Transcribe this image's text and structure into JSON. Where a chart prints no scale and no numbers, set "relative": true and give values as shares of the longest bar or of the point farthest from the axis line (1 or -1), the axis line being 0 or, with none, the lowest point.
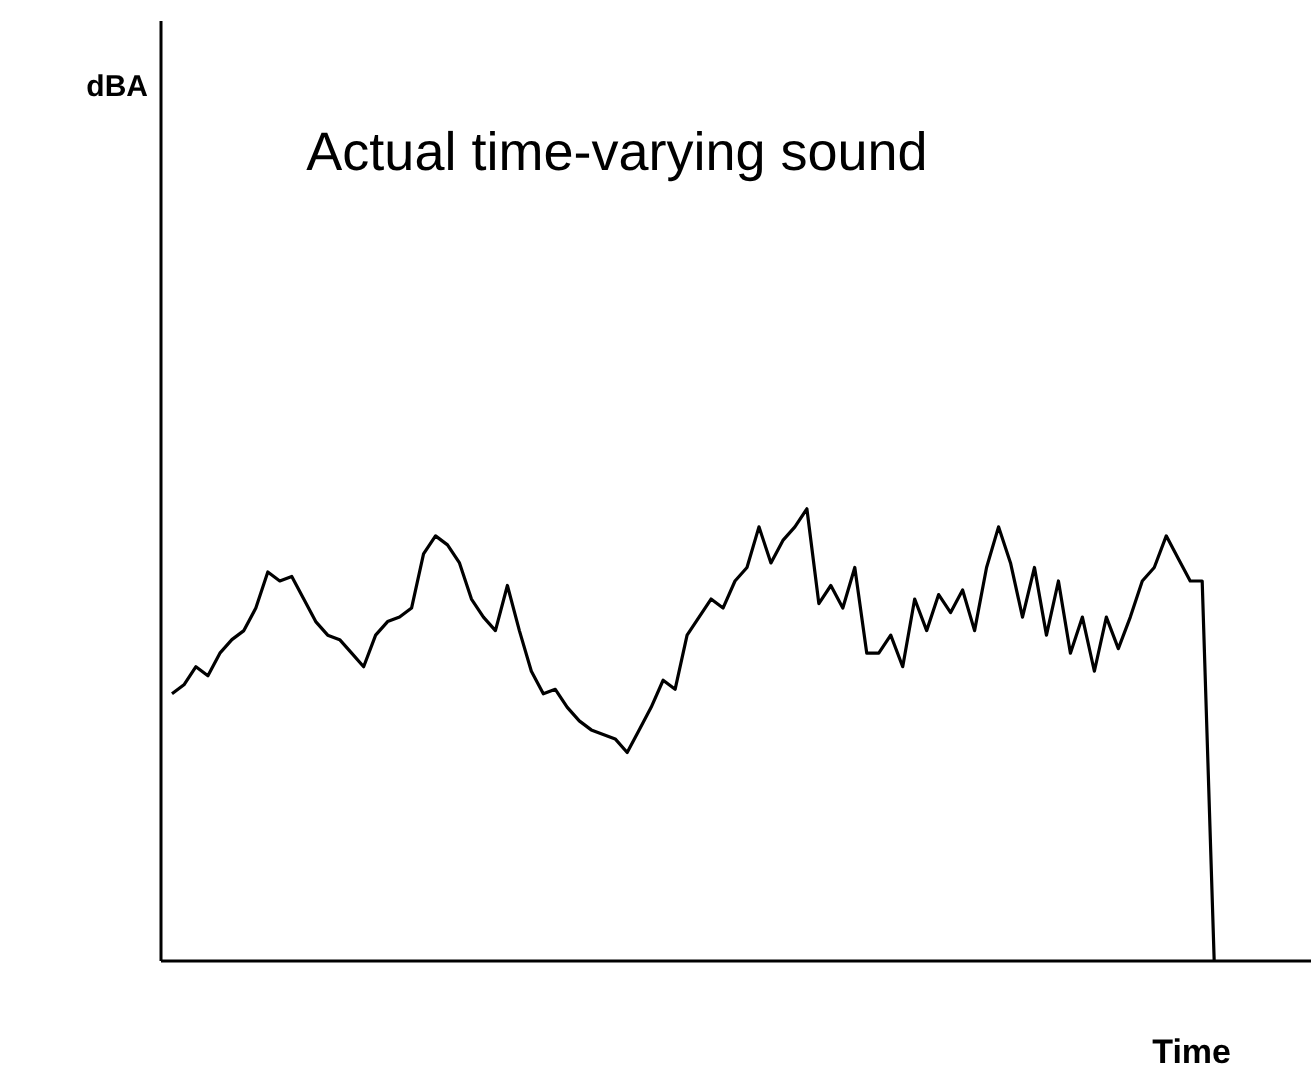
{
  "chart_data": {
    "type": "line",
    "title": "Actual time-varying sound",
    "xlabel": "Time",
    "annotations": [
      "dBA"
    ],
    "relative": true,
    "grid": false,
    "tick_labels": false,
    "marker": "none",
    "line_style": "solid",
    "categories": [
      null,
      null,
      null,
      null,
      null,
      null,
      null,
      null,
      null,
      null,
      null,
      null,
      null,
      null,
      null,
      null,
      null,
      null,
      null,
      null,
      null,
      null,
      null,
      null,
      null,
      null,
      null,
      null,
      null,
      null,
      null,
      null,
      null,
      null,
      null,
      null,
      null,
      null,
      null,
      null,
      null,
      null,
      null,
      null,
      null,
      null,
      null,
      null,
      null,
      null,
      null,
      null,
      null,
      null,
      null,
      null,
      null,
      null,
      null,
      null,
      null,
      null,
      null,
      null,
      null,
      null,
      null,
      null,
      null,
      null,
      null,
      null,
      null,
      null,
      null,
      null,
      null,
      null,
      null,
      null,
      null,
      null,
      null,
      null,
      null,
      null,
      null,
      null
    ],
    "series": [
      {
        "color": "#000000",
        "values": [
          0.59,
          0.61,
          0.65,
          0.63,
          0.68,
          0.71,
          0.73,
          0.78,
          0.86,
          0.84,
          0.85,
          0.8,
          0.75,
          0.72,
          0.71,
          0.68,
          0.65,
          0.72,
          0.75,
          0.76,
          0.78,
          0.9,
          0.94,
          0.92,
          0.88,
          0.8,
          0.76,
          0.73,
          0.83,
          0.73,
          0.64,
          0.59,
          0.6,
          0.56,
          0.53,
          0.51,
          0.5,
          0.49,
          0.46,
          0.51,
          0.56,
          0.62,
          0.6,
          0.72,
          0.76,
          0.8,
          0.78,
          0.84,
          0.87,
          0.96,
          0.88,
          0.93,
          0.96,
          1,
          0.79,
          0.83,
          0.78,
          0.87,
          0.68,
          0.68,
          0.72,
          0.65,
          0.8,
          0.73,
          0.81,
          0.77,
          0.82,
          0.73,
          0.87,
          0.96,
          0.88,
          0.76,
          0.87,
          0.72,
          0.84,
          0.68,
          0.76,
          0.64,
          0.76,
          0.69,
          0.76,
          0.84,
          0.87,
          0.94,
          0.89,
          0.84,
          0.84,
          0
        ]
      }
    ]
  }
}
